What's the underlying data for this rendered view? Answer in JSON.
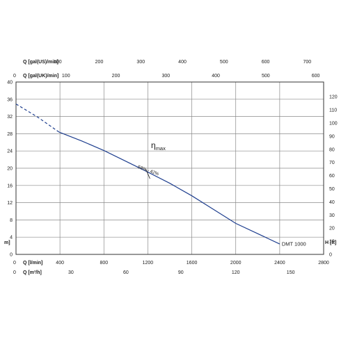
{
  "chart_data": {
    "type": "line",
    "ylim_left": [
      0,
      40
    ],
    "ylim_right": [
      0,
      130
    ],
    "xlim_lmin": [
      0,
      2800
    ],
    "left_y_ticks": [
      "0",
      "4",
      "8",
      "12",
      "16",
      "20",
      "24",
      "28",
      "32",
      "36",
      "40"
    ],
    "left_y_unit": "m]",
    "right_y_ticks": [
      "0",
      "10",
      "20",
      "30",
      "40",
      "50",
      "60",
      "70",
      "80",
      "90",
      "100",
      "110",
      "120"
    ],
    "right_y_unit": "H [ft]",
    "bottom_axis_1": {
      "label": "Q [l/min]",
      "zero": "0",
      "ticks": [
        {
          "v": 400,
          "t": "400"
        },
        {
          "v": 800,
          "t": "800"
        },
        {
          "v": 1200,
          "t": "1200"
        },
        {
          "v": 1600,
          "t": "1600"
        },
        {
          "v": 2000,
          "t": "2000"
        },
        {
          "v": 2400,
          "t": "2400"
        },
        {
          "v": 2800,
          "t": "2800"
        }
      ]
    },
    "bottom_axis_2": {
      "label": "Q [m³/h]",
      "zero": "0",
      "ticks": [
        {
          "v": 30,
          "t": "30"
        },
        {
          "v": 60,
          "t": "60"
        },
        {
          "v": 90,
          "t": "90"
        },
        {
          "v": 120,
          "t": "120"
        },
        {
          "v": 150,
          "t": "150"
        }
      ]
    },
    "top_axis_1": {
      "label": "Q [gal(US)/min]",
      "ticks": [
        {
          "v": 100,
          "t": "100"
        },
        {
          "v": 200,
          "t": "200"
        },
        {
          "v": 300,
          "t": "300"
        },
        {
          "v": 400,
          "t": "400"
        },
        {
          "v": 500,
          "t": "500"
        },
        {
          "v": 600,
          "t": "600"
        },
        {
          "v": 700,
          "t": "700"
        }
      ]
    },
    "top_axis_2": {
      "label": "Q [gal(UK)/min]",
      "zero": "0",
      "ticks": [
        {
          "v": 100,
          "t": "100"
        },
        {
          "v": 200,
          "t": "200"
        },
        {
          "v": 300,
          "t": "300"
        },
        {
          "v": 400,
          "t": "400"
        },
        {
          "v": 500,
          "t": "500"
        },
        {
          "v": 600,
          "t": "600"
        }
      ]
    },
    "series": [
      {
        "name": "DMT 1000",
        "dashed_points": [
          [
            0,
            34.9
          ],
          [
            200,
            31.8
          ],
          [
            390,
            28.4
          ]
        ],
        "points": [
          [
            390,
            28.4
          ],
          [
            600,
            26.3
          ],
          [
            800,
            24.1
          ],
          [
            1000,
            21.6
          ],
          [
            1200,
            19.1
          ],
          [
            1400,
            16.5
          ],
          [
            1600,
            13.6
          ],
          [
            1800,
            10.4
          ],
          [
            2000,
            7.2
          ],
          [
            2200,
            4.8
          ],
          [
            2400,
            2.4
          ]
        ]
      }
    ],
    "annotations": {
      "eta_symbol": "η",
      "eta_sub": "max",
      "eff_marker_value": "58% - 42%",
      "eff_marker_at": [
        1200,
        18.7
      ]
    },
    "colors": {
      "curve": "#1f3f8f",
      "grid": "#8a8a8a"
    },
    "grid": true
  }
}
